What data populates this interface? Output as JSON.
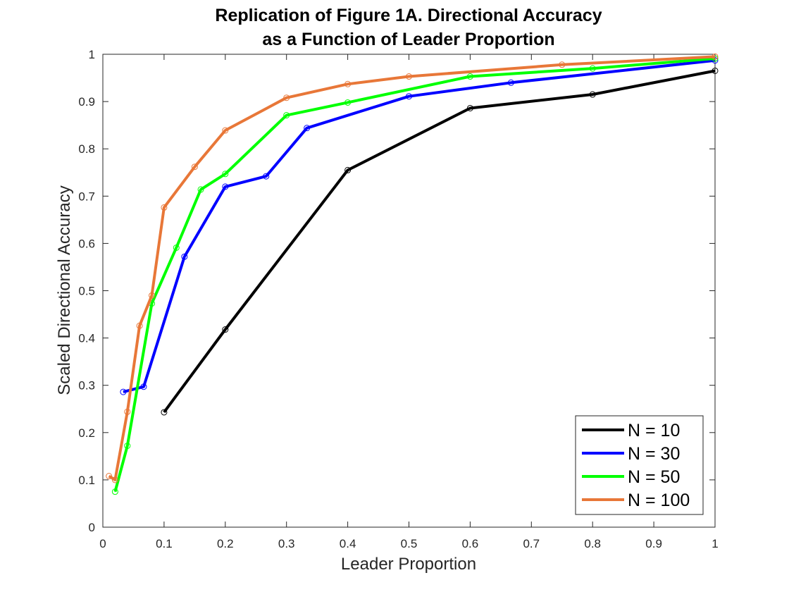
{
  "chart_data": {
    "type": "line",
    "title": [
      "Replication of Figure 1A. Directional Accuracy",
      "as a Function of Leader Proportion"
    ],
    "xlabel": "Leader Proportion",
    "ylabel": "Scaled Directional Accuracy",
    "xlim": [
      0,
      1
    ],
    "ylim": [
      0,
      1
    ],
    "xticks": [
      0,
      0.1,
      0.2,
      0.3,
      0.4,
      0.5,
      0.6,
      0.7,
      0.8,
      0.9,
      1
    ],
    "yticks": [
      0,
      0.1,
      0.2,
      0.3,
      0.4,
      0.5,
      0.6,
      0.7,
      0.8,
      0.9,
      1
    ],
    "grid": false,
    "legend_position": "bottom-right",
    "series": [
      {
        "name": "N = 10",
        "color": "#000000",
        "x": [
          0.1,
          0.2,
          0.4,
          0.6,
          0.8,
          1.0
        ],
        "y": [
          0.243,
          0.418,
          0.755,
          0.886,
          0.915,
          0.965
        ]
      },
      {
        "name": "N = 30",
        "color": "#0000ff",
        "x": [
          0.0333,
          0.0667,
          0.1333,
          0.2,
          0.2667,
          0.3333,
          0.5,
          0.6667,
          1.0
        ],
        "y": [
          0.286,
          0.297,
          0.572,
          0.72,
          0.742,
          0.844,
          0.911,
          0.94,
          0.987
        ]
      },
      {
        "name": "N = 50",
        "color": "#00ff00",
        "x": [
          0.02,
          0.04,
          0.08,
          0.12,
          0.16,
          0.2,
          0.3,
          0.4,
          0.6,
          0.8,
          1.0
        ],
        "y": [
          0.075,
          0.172,
          0.473,
          0.591,
          0.714,
          0.747,
          0.871,
          0.898,
          0.953,
          0.97,
          0.991
        ]
      },
      {
        "name": "N = 100",
        "color": "#e87738",
        "x": [
          0.01,
          0.02,
          0.04,
          0.06,
          0.08,
          0.1,
          0.15,
          0.2,
          0.3,
          0.4,
          0.5,
          0.75,
          1.0
        ],
        "y": [
          0.108,
          0.1,
          0.244,
          0.426,
          0.49,
          0.676,
          0.762,
          0.839,
          0.908,
          0.937,
          0.953,
          0.978,
          0.995
        ]
      }
    ]
  }
}
